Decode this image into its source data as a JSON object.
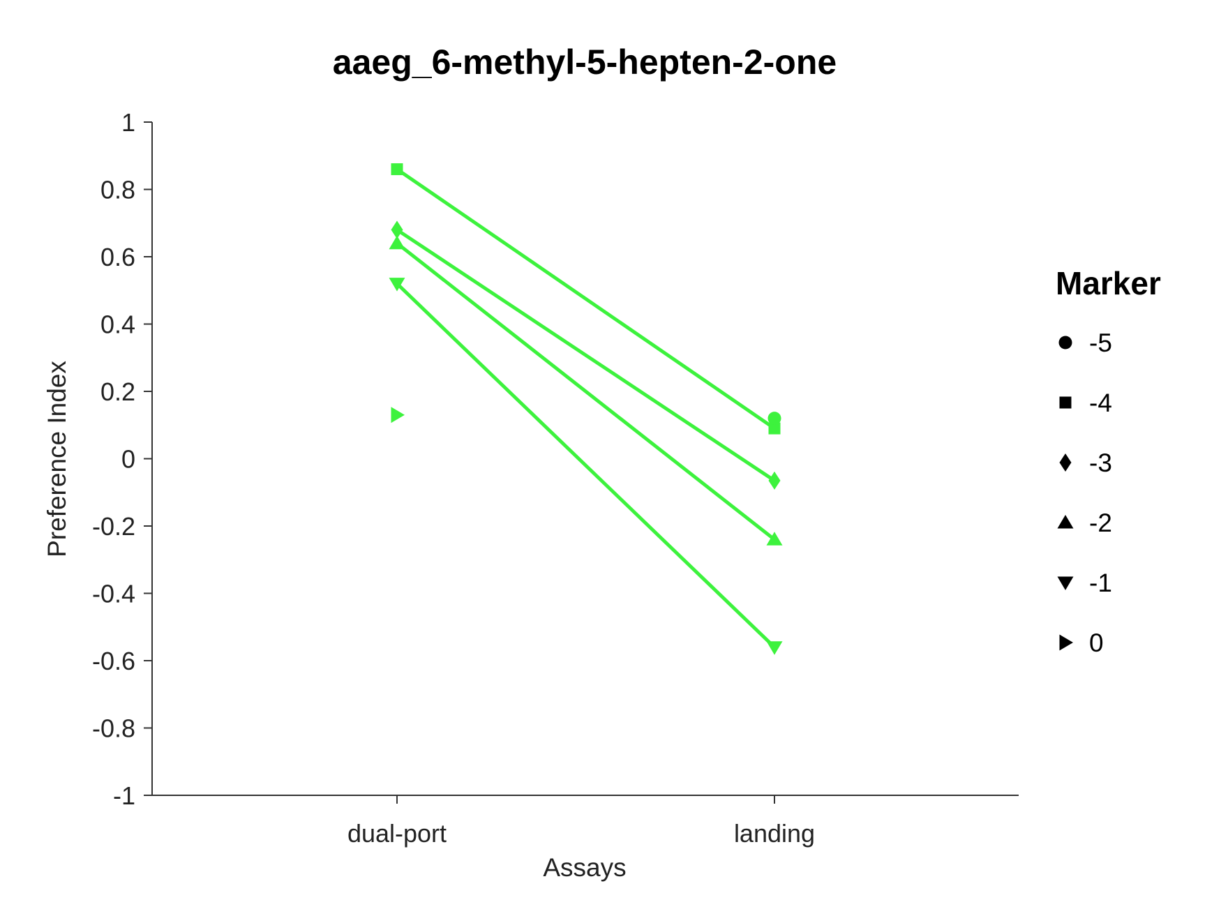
{
  "chart_data": {
    "type": "line",
    "title": "aaeg_6-methyl-5-hepten-2-one",
    "xlabel": "Assays",
    "ylabel": "Preference Index",
    "categories": [
      "dual-port",
      "landing"
    ],
    "ylim": [
      -1,
      1
    ],
    "yticks": [
      1,
      0.8,
      0.6,
      0.4,
      0.2,
      0,
      -0.2,
      -0.4,
      -0.6,
      -0.8,
      -1
    ],
    "ytick_labels": [
      "1",
      "0.8",
      "0.6",
      "0.4",
      "0.2",
      "0",
      "-0.2",
      "-0.4",
      "-0.6",
      "-0.8",
      "-1"
    ],
    "line_color": "#3df23d",
    "grid": false,
    "legend": {
      "title": "Marker",
      "placement": "right",
      "entries": [
        {
          "label": "-5",
          "marker": "circle"
        },
        {
          "label": "-4",
          "marker": "square"
        },
        {
          "label": "-3",
          "marker": "diamond"
        },
        {
          "label": "-2",
          "marker": "triangle-up"
        },
        {
          "label": "-1",
          "marker": "triangle-down"
        },
        {
          "label": "0",
          "marker": "triangle-right"
        }
      ]
    },
    "series": [
      {
        "marker_dual": "square",
        "marker_landing": "square",
        "values": [
          0.86,
          0.09
        ]
      },
      {
        "marker_dual": "diamond",
        "marker_landing": "diamond",
        "values": [
          0.68,
          -0.065
        ]
      },
      {
        "marker_dual": "triangle-up",
        "marker_landing": "triangle-up",
        "values": [
          0.64,
          -0.24
        ]
      },
      {
        "marker_dual": "triangle-down",
        "marker_landing": "triangle-down",
        "values": [
          0.52,
          -0.56
        ]
      }
    ],
    "points": [
      {
        "category": "dual-port",
        "value": 0.13,
        "marker": "triangle-right"
      },
      {
        "category": "landing",
        "value": 0.12,
        "marker": "circle"
      }
    ]
  }
}
